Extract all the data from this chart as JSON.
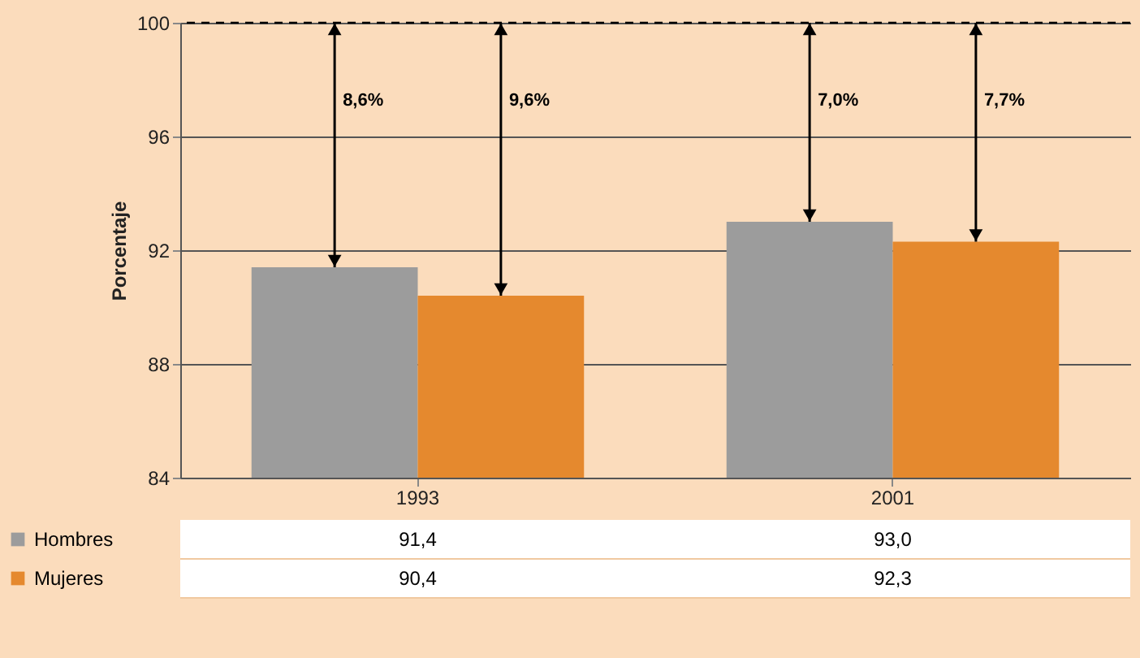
{
  "chart_data": {
    "type": "bar",
    "ylabel": "Porcentaje",
    "categories": [
      "1993",
      "2001"
    ],
    "series": [
      {
        "name": "Hombres",
        "color": "#9c9c9c",
        "values": [
          91.4,
          93.0
        ],
        "value_labels": [
          "91,4",
          "93,0"
        ]
      },
      {
        "name": "Mujeres",
        "color": "#e5892e",
        "values": [
          90.4,
          92.3
        ],
        "value_labels": [
          "90,4",
          "92,3"
        ]
      }
    ],
    "ylim": [
      84,
      100
    ],
    "yticks": [
      84,
      88,
      92,
      96,
      100
    ],
    "grid": "y",
    "legend": "bottom",
    "ref_lines": [
      {
        "axis": "y",
        "value": 100,
        "line_style": "dashed",
        "color": "#000000"
      }
    ],
    "annotations": [
      "8,6%",
      "9,6%",
      "7,0%",
      "7,7%"
    ]
  }
}
